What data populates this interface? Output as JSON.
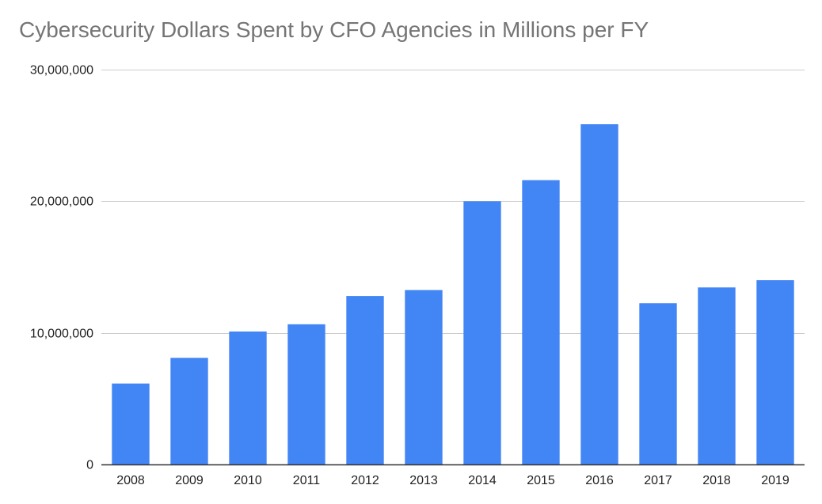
{
  "chart_data": {
    "type": "bar",
    "title": "Cybersecurity Dollars Spent by CFO Agencies in Millions per FY",
    "xlabel": "",
    "ylabel": "",
    "categories": [
      "2008",
      "2009",
      "2010",
      "2011",
      "2012",
      "2013",
      "2014",
      "2015",
      "2016",
      "2017",
      "2018",
      "2019"
    ],
    "values": [
      6150000,
      8100000,
      10100000,
      10650000,
      12800000,
      13250000,
      20000000,
      21600000,
      25850000,
      12250000,
      13450000,
      14000000
    ],
    "ylim": [
      0,
      30000000
    ],
    "yticks": [
      0,
      10000000,
      20000000,
      30000000
    ],
    "ytick_labels": [
      "0",
      "10,000,000",
      "20,000,000",
      "30,000,000"
    ],
    "grid": true,
    "legend": "none",
    "bar_color": "#4285f4",
    "grid_color": "#cccccc",
    "axis_color": "#333333"
  }
}
